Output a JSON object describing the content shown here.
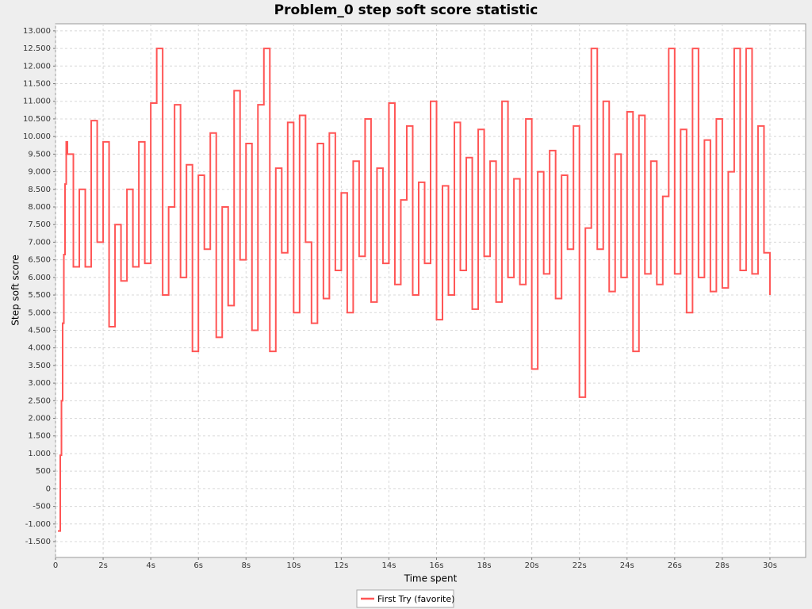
{
  "chart_data": {
    "type": "step",
    "title": "Problem_0 step soft score statistic",
    "xlabel": "Time spent",
    "ylabel": "Step soft score",
    "grid": true,
    "xlim": [
      0,
      31.5
    ],
    "ylim": [
      -1950,
      13200
    ],
    "xticks": [
      0,
      {
        "value": 2,
        "label": "2s"
      },
      {
        "value": 4,
        "label": "4s"
      },
      {
        "value": 6,
        "label": "6s"
      },
      {
        "value": 8,
        "label": "8s"
      },
      {
        "value": 10,
        "label": "10s"
      },
      {
        "value": 12,
        "label": "12s"
      },
      {
        "value": 14,
        "label": "14s"
      },
      {
        "value": 16,
        "label": "16s"
      },
      {
        "value": 18,
        "label": "18s"
      },
      {
        "value": 20,
        "label": "20s"
      },
      {
        "value": 22,
        "label": "22s"
      },
      {
        "value": 24,
        "label": "24s"
      },
      {
        "value": 26,
        "label": "26s"
      },
      {
        "value": 28,
        "label": "28s"
      },
      {
        "value": 30,
        "label": "30s"
      }
    ],
    "yticks": [
      {
        "value": -1500,
        "label": "-1.500"
      },
      {
        "value": -1000,
        "label": "-1.000"
      },
      -500,
      0,
      500,
      {
        "value": 1000,
        "label": "1.000"
      },
      {
        "value": 1500,
        "label": "1.500"
      },
      {
        "value": 2000,
        "label": "2.000"
      },
      {
        "value": 2500,
        "label": "2.500"
      },
      {
        "value": 3000,
        "label": "3.000"
      },
      {
        "value": 3500,
        "label": "3.500"
      },
      {
        "value": 4000,
        "label": "4.000"
      },
      {
        "value": 4500,
        "label": "4.500"
      },
      {
        "value": 5000,
        "label": "5.000"
      },
      {
        "value": 5500,
        "label": "5.500"
      },
      {
        "value": 6000,
        "label": "6.000"
      },
      {
        "value": 6500,
        "label": "6.500"
      },
      {
        "value": 7000,
        "label": "7.000"
      },
      {
        "value": 7500,
        "label": "7.500"
      },
      {
        "value": 8000,
        "label": "8.000"
      },
      {
        "value": 8500,
        "label": "8.500"
      },
      {
        "value": 9000,
        "label": "9.000"
      },
      {
        "value": 9500,
        "label": "9.500"
      },
      {
        "value": 10000,
        "label": "10.000"
      },
      {
        "value": 10500,
        "label": "10.500"
      },
      {
        "value": 11000,
        "label": "11.000"
      },
      {
        "value": 11500,
        "label": "11.500"
      },
      {
        "value": 12000,
        "label": "12.000"
      },
      {
        "value": 12500,
        "label": "12.500"
      },
      {
        "value": 13000,
        "label": "13.000"
      }
    ],
    "x": [
      0.1,
      0.2,
      0.25,
      0.3,
      0.35,
      0.4,
      0.45,
      0.5,
      0.75,
      1,
      1.25,
      1.5,
      1.75,
      2,
      2.25,
      2.5,
      2.75,
      3,
      3.25,
      3.5,
      3.75,
      4,
      4.25,
      4.5,
      4.75,
      5,
      5.25,
      5.5,
      5.75,
      6,
      6.25,
      6.5,
      6.75,
      7,
      7.25,
      7.5,
      7.75,
      8,
      8.25,
      8.5,
      8.75,
      9,
      9.25,
      9.5,
      9.75,
      10,
      10.25,
      10.5,
      10.75,
      11,
      11.25,
      11.5,
      11.75,
      12,
      12.25,
      12.5,
      12.75,
      13,
      13.25,
      13.5,
      13.75,
      14,
      14.25,
      14.5,
      14.75,
      15,
      15.25,
      15.5,
      15.75,
      16,
      16.25,
      16.5,
      16.75,
      17,
      17.25,
      17.5,
      17.75,
      18,
      18.25,
      18.5,
      18.75,
      19,
      19.25,
      19.5,
      19.75,
      20,
      20.25,
      20.5,
      20.75,
      21,
      21.25,
      21.5,
      21.75,
      22,
      22.25,
      22.5,
      22.75,
      23,
      23.25,
      23.5,
      23.75,
      24,
      24.25,
      24.5,
      24.75,
      25,
      25.25,
      25.5,
      25.75,
      26,
      26.25,
      26.5,
      26.75,
      27,
      27.25,
      27.5,
      27.75,
      28,
      28.25,
      28.5,
      28.75,
      29,
      29.25,
      29.5,
      29.75,
      30
    ],
    "series": [
      {
        "name": "First Try (favorite)",
        "color": "#ff5555",
        "values": [
          -1200,
          950,
          2500,
          4700,
          6650,
          8650,
          9850,
          9500,
          6300,
          8500,
          6300,
          10450,
          7000,
          9850,
          4600,
          7500,
          5900,
          8500,
          6300,
          9850,
          6400,
          10950,
          12500,
          5500,
          8000,
          10900,
          6000,
          9200,
          3900,
          8900,
          6800,
          10100,
          4300,
          8000,
          5200,
          11300,
          6500,
          9800,
          4500,
          10900,
          12500,
          3900,
          9100,
          6700,
          10400,
          5000,
          10600,
          7000,
          4700,
          9800,
          5400,
          10100,
          6200,
          8400,
          5000,
          9300,
          6600,
          10500,
          5300,
          9100,
          6400,
          10950,
          5800,
          8200,
          10300,
          5500,
          8700,
          6400,
          11000,
          4800,
          8600,
          5500,
          10400,
          6200,
          9400,
          5100,
          10200,
          6600,
          9300,
          5300,
          11000,
          6000,
          8800,
          5800,
          10500,
          3400,
          9000,
          6100,
          9600,
          5400,
          8900,
          6800,
          10300,
          2600,
          7400,
          12500,
          6800,
          11000,
          5600,
          9500,
          6000,
          10700,
          3900,
          10600,
          6100,
          9300,
          5800,
          8300,
          12500,
          6100,
          10200,
          5000,
          12500,
          6000,
          9900,
          5600,
          10500,
          5700,
          9000,
          12500,
          6200,
          12500,
          6100,
          10300,
          6700,
          5500
        ]
      }
    ]
  }
}
